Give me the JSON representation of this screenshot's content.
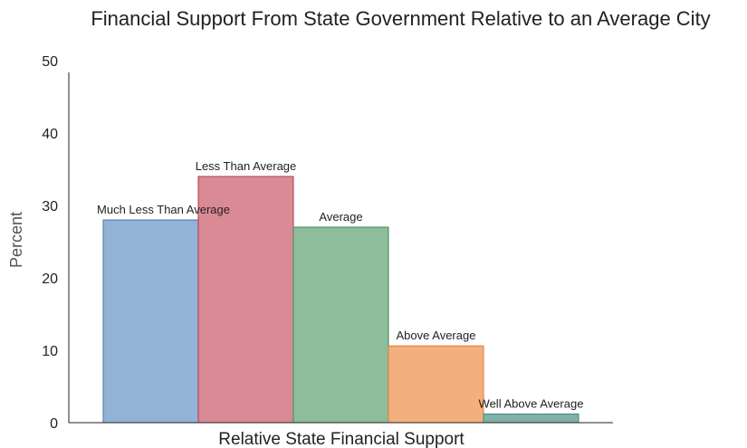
{
  "chart_data": {
    "type": "bar",
    "title": "Financial Support From State Government Relative to an Average City",
    "xlabel": "Relative State Financial Support",
    "ylabel": "Percent",
    "ylim": [
      0,
      50
    ],
    "yticks": [
      0,
      10,
      20,
      30,
      40,
      50
    ],
    "grid": false,
    "legend": "none",
    "categories": [
      "Much Less Than Average",
      "Less Than Average",
      "Average",
      "Above Average",
      "Well Above Average"
    ],
    "values": [
      28,
      34,
      27,
      10.6,
      1.2
    ],
    "colors": [
      {
        "fill": "#92b2d6",
        "stroke": "#4a72a8"
      },
      {
        "fill": "#d98a94",
        "stroke": "#b03a4c"
      },
      {
        "fill": "#8dbd9a",
        "stroke": "#3d8a57"
      },
      {
        "fill": "#f2b07e",
        "stroke": "#e07a2c"
      },
      {
        "fill": "#7fb0aa",
        "stroke": "#3c8a82"
      }
    ]
  }
}
